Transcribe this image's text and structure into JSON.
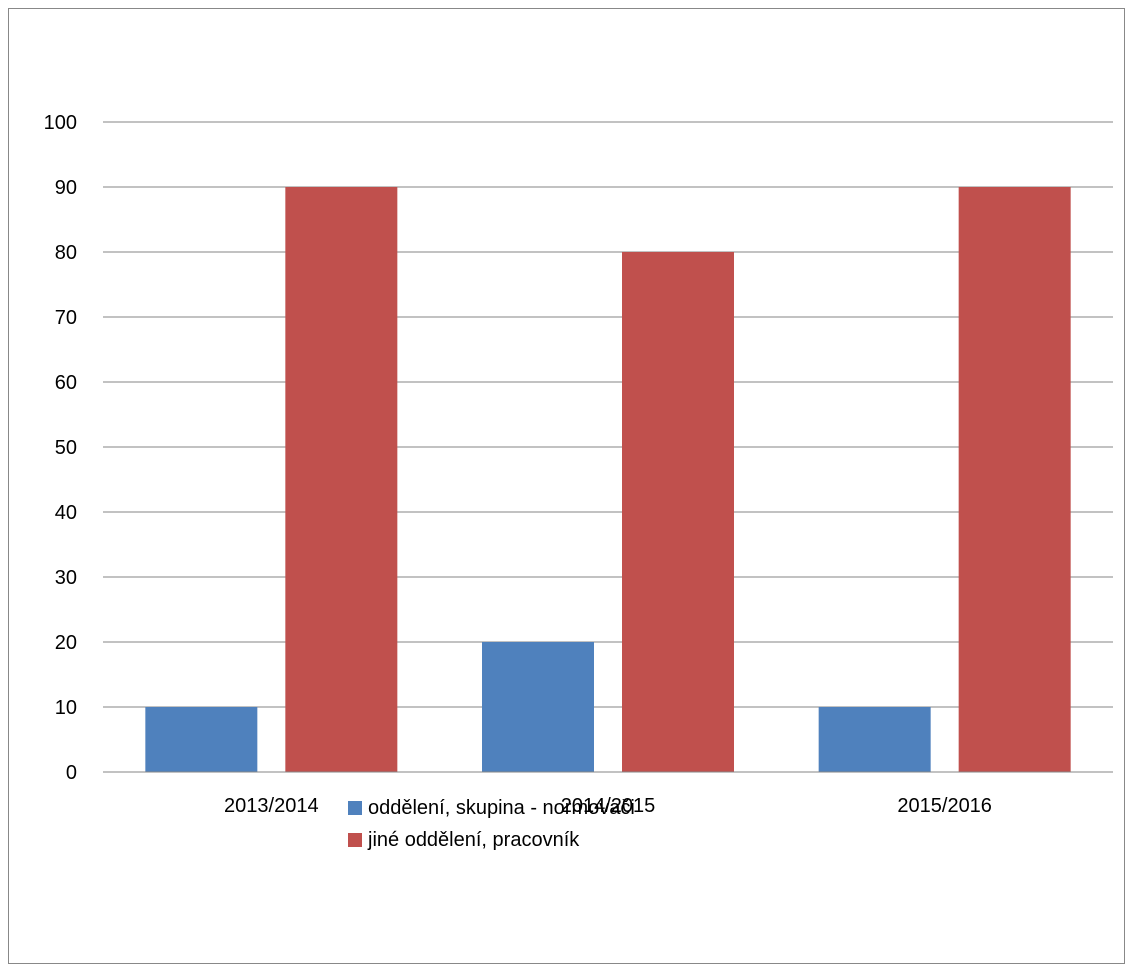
{
  "chart_data": {
    "type": "bar",
    "categories": [
      "2013/2014",
      "2014/2015",
      "2015/2016"
    ],
    "series": [
      {
        "name": "oddělení, skupina - normovači",
        "values": [
          10,
          20,
          10
        ],
        "color": "#4F81BD"
      },
      {
        "name": "jiné oddělení, pracovník",
        "values": [
          90,
          80,
          90
        ],
        "color": "#C0504D"
      }
    ],
    "ylim": [
      0,
      100
    ],
    "yticks": [
      0,
      10,
      20,
      30,
      40,
      50,
      60,
      70,
      80,
      90,
      100
    ],
    "grid": true,
    "legend_position": "bottom"
  }
}
